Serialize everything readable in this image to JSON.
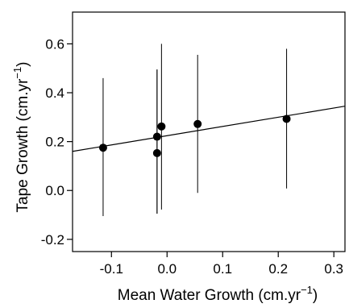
{
  "chart_data": {
    "type": "scatter",
    "title": "",
    "xlabel_main": "Mean Water Growth (cm.yr",
    "xlabel_sup": "−1",
    "xlabel_close": ")",
    "ylabel_main": "Tape Growth (cm.yr",
    "ylabel_sup": "−1",
    "ylabel_close": ")",
    "xlim": [
      -0.17,
      0.32
    ],
    "ylim": [
      -0.25,
      0.73
    ],
    "x_ticks": [
      -0.1,
      0.0,
      0.1,
      0.2,
      0.3
    ],
    "x_tick_labels": [
      "-0.1",
      "0.0",
      "0.1",
      "0.2",
      "0.3"
    ],
    "y_ticks": [
      -0.2,
      0.0,
      0.2,
      0.4,
      0.6
    ],
    "y_tick_labels": [
      "-0.2",
      "0.0",
      "0.2",
      "0.4",
      "0.6"
    ],
    "grid": false,
    "legend": "none",
    "points": [
      {
        "x": -0.115,
        "y": 0.175,
        "y_low": -0.105,
        "y_high": 0.46
      },
      {
        "x": -0.018,
        "y": 0.22,
        "y_low": -0.095,
        "y_high": 0.495
      },
      {
        "x": -0.018,
        "y": 0.153,
        "y_low": -0.095,
        "y_high": 0.495
      },
      {
        "x": -0.01,
        "y": 0.262,
        "y_low": -0.078,
        "y_high": 0.6
      },
      {
        "x": 0.055,
        "y": 0.272,
        "y_low": -0.01,
        "y_high": 0.555
      },
      {
        "x": 0.215,
        "y": 0.293,
        "y_low": 0.008,
        "y_high": 0.58
      }
    ],
    "fit_line": {
      "x": [
        -0.17,
        0.32
      ],
      "y": [
        0.16,
        0.345
      ]
    }
  }
}
